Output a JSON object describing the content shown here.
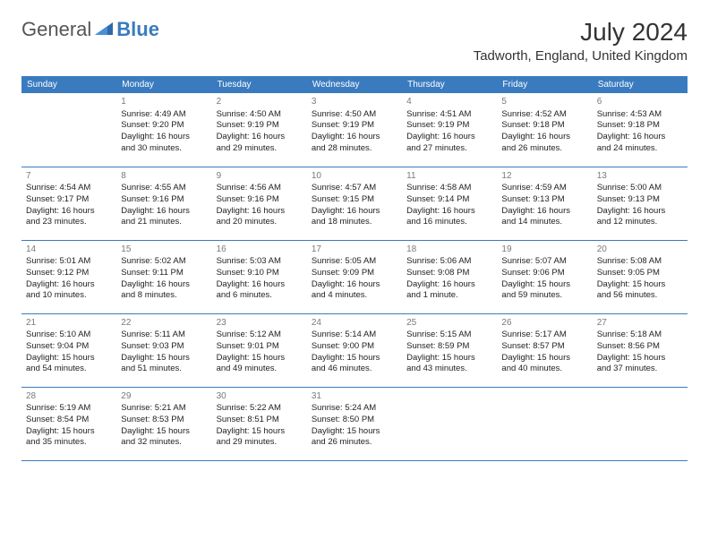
{
  "logo": {
    "text1": "General",
    "text2": "Blue"
  },
  "title": "July 2024",
  "location": "Tadworth, England, United Kingdom",
  "colors": {
    "header_bg": "#3a7bbf",
    "header_fg": "#ffffff",
    "rule": "#3a7bbf",
    "daynum": "#7a7a7a",
    "text": "#222222"
  },
  "weekdays": [
    "Sunday",
    "Monday",
    "Tuesday",
    "Wednesday",
    "Thursday",
    "Friday",
    "Saturday"
  ],
  "weeks": [
    [
      null,
      {
        "n": "1",
        "sr": "Sunrise: 4:49 AM",
        "ss": "Sunset: 9:20 PM",
        "d1": "Daylight: 16 hours",
        "d2": "and 30 minutes."
      },
      {
        "n": "2",
        "sr": "Sunrise: 4:50 AM",
        "ss": "Sunset: 9:19 PM",
        "d1": "Daylight: 16 hours",
        "d2": "and 29 minutes."
      },
      {
        "n": "3",
        "sr": "Sunrise: 4:50 AM",
        "ss": "Sunset: 9:19 PM",
        "d1": "Daylight: 16 hours",
        "d2": "and 28 minutes."
      },
      {
        "n": "4",
        "sr": "Sunrise: 4:51 AM",
        "ss": "Sunset: 9:19 PM",
        "d1": "Daylight: 16 hours",
        "d2": "and 27 minutes."
      },
      {
        "n": "5",
        "sr": "Sunrise: 4:52 AM",
        "ss": "Sunset: 9:18 PM",
        "d1": "Daylight: 16 hours",
        "d2": "and 26 minutes."
      },
      {
        "n": "6",
        "sr": "Sunrise: 4:53 AM",
        "ss": "Sunset: 9:18 PM",
        "d1": "Daylight: 16 hours",
        "d2": "and 24 minutes."
      }
    ],
    [
      {
        "n": "7",
        "sr": "Sunrise: 4:54 AM",
        "ss": "Sunset: 9:17 PM",
        "d1": "Daylight: 16 hours",
        "d2": "and 23 minutes."
      },
      {
        "n": "8",
        "sr": "Sunrise: 4:55 AM",
        "ss": "Sunset: 9:16 PM",
        "d1": "Daylight: 16 hours",
        "d2": "and 21 minutes."
      },
      {
        "n": "9",
        "sr": "Sunrise: 4:56 AM",
        "ss": "Sunset: 9:16 PM",
        "d1": "Daylight: 16 hours",
        "d2": "and 20 minutes."
      },
      {
        "n": "10",
        "sr": "Sunrise: 4:57 AM",
        "ss": "Sunset: 9:15 PM",
        "d1": "Daylight: 16 hours",
        "d2": "and 18 minutes."
      },
      {
        "n": "11",
        "sr": "Sunrise: 4:58 AM",
        "ss": "Sunset: 9:14 PM",
        "d1": "Daylight: 16 hours",
        "d2": "and 16 minutes."
      },
      {
        "n": "12",
        "sr": "Sunrise: 4:59 AM",
        "ss": "Sunset: 9:13 PM",
        "d1": "Daylight: 16 hours",
        "d2": "and 14 minutes."
      },
      {
        "n": "13",
        "sr": "Sunrise: 5:00 AM",
        "ss": "Sunset: 9:13 PM",
        "d1": "Daylight: 16 hours",
        "d2": "and 12 minutes."
      }
    ],
    [
      {
        "n": "14",
        "sr": "Sunrise: 5:01 AM",
        "ss": "Sunset: 9:12 PM",
        "d1": "Daylight: 16 hours",
        "d2": "and 10 minutes."
      },
      {
        "n": "15",
        "sr": "Sunrise: 5:02 AM",
        "ss": "Sunset: 9:11 PM",
        "d1": "Daylight: 16 hours",
        "d2": "and 8 minutes."
      },
      {
        "n": "16",
        "sr": "Sunrise: 5:03 AM",
        "ss": "Sunset: 9:10 PM",
        "d1": "Daylight: 16 hours",
        "d2": "and 6 minutes."
      },
      {
        "n": "17",
        "sr": "Sunrise: 5:05 AM",
        "ss": "Sunset: 9:09 PM",
        "d1": "Daylight: 16 hours",
        "d2": "and 4 minutes."
      },
      {
        "n": "18",
        "sr": "Sunrise: 5:06 AM",
        "ss": "Sunset: 9:08 PM",
        "d1": "Daylight: 16 hours",
        "d2": "and 1 minute."
      },
      {
        "n": "19",
        "sr": "Sunrise: 5:07 AM",
        "ss": "Sunset: 9:06 PM",
        "d1": "Daylight: 15 hours",
        "d2": "and 59 minutes."
      },
      {
        "n": "20",
        "sr": "Sunrise: 5:08 AM",
        "ss": "Sunset: 9:05 PM",
        "d1": "Daylight: 15 hours",
        "d2": "and 56 minutes."
      }
    ],
    [
      {
        "n": "21",
        "sr": "Sunrise: 5:10 AM",
        "ss": "Sunset: 9:04 PM",
        "d1": "Daylight: 15 hours",
        "d2": "and 54 minutes."
      },
      {
        "n": "22",
        "sr": "Sunrise: 5:11 AM",
        "ss": "Sunset: 9:03 PM",
        "d1": "Daylight: 15 hours",
        "d2": "and 51 minutes."
      },
      {
        "n": "23",
        "sr": "Sunrise: 5:12 AM",
        "ss": "Sunset: 9:01 PM",
        "d1": "Daylight: 15 hours",
        "d2": "and 49 minutes."
      },
      {
        "n": "24",
        "sr": "Sunrise: 5:14 AM",
        "ss": "Sunset: 9:00 PM",
        "d1": "Daylight: 15 hours",
        "d2": "and 46 minutes."
      },
      {
        "n": "25",
        "sr": "Sunrise: 5:15 AM",
        "ss": "Sunset: 8:59 PM",
        "d1": "Daylight: 15 hours",
        "d2": "and 43 minutes."
      },
      {
        "n": "26",
        "sr": "Sunrise: 5:17 AM",
        "ss": "Sunset: 8:57 PM",
        "d1": "Daylight: 15 hours",
        "d2": "and 40 minutes."
      },
      {
        "n": "27",
        "sr": "Sunrise: 5:18 AM",
        "ss": "Sunset: 8:56 PM",
        "d1": "Daylight: 15 hours",
        "d2": "and 37 minutes."
      }
    ],
    [
      {
        "n": "28",
        "sr": "Sunrise: 5:19 AM",
        "ss": "Sunset: 8:54 PM",
        "d1": "Daylight: 15 hours",
        "d2": "and 35 minutes."
      },
      {
        "n": "29",
        "sr": "Sunrise: 5:21 AM",
        "ss": "Sunset: 8:53 PM",
        "d1": "Daylight: 15 hours",
        "d2": "and 32 minutes."
      },
      {
        "n": "30",
        "sr": "Sunrise: 5:22 AM",
        "ss": "Sunset: 8:51 PM",
        "d1": "Daylight: 15 hours",
        "d2": "and 29 minutes."
      },
      {
        "n": "31",
        "sr": "Sunrise: 5:24 AM",
        "ss": "Sunset: 8:50 PM",
        "d1": "Daylight: 15 hours",
        "d2": "and 26 minutes."
      },
      null,
      null,
      null
    ]
  ]
}
